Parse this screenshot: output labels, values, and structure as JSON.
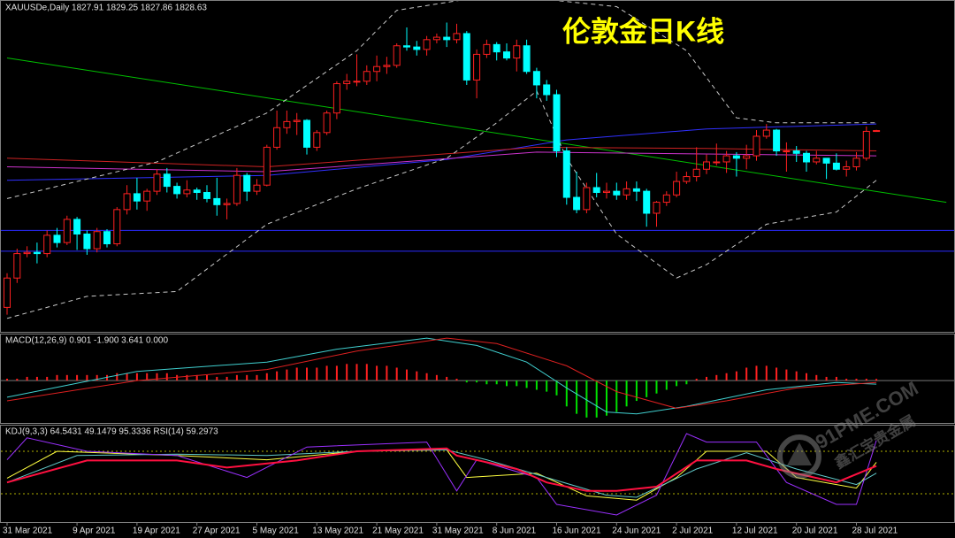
{
  "chart_data": [
    {
      "type": "candlestick",
      "title": "伦敦金日K线",
      "header": "XAUUSDe,Daily  1827.91 1829.25 1827.86 1828.63",
      "categories": [
        "31 Mar 2021",
        null,
        null,
        null,
        null,
        null,
        null,
        "9 Apr 2021",
        null,
        null,
        null,
        null,
        null,
        "19 Apr 2021",
        null,
        null,
        null,
        null,
        null,
        "27 Apr 2021",
        null,
        null,
        null,
        null,
        null,
        "5 May 2021",
        null,
        null,
        null,
        null,
        null,
        "13 May 2021",
        null,
        null,
        null,
        null,
        null,
        "21 May 2021",
        null,
        null,
        null,
        null,
        null,
        "31 May 2021",
        null,
        null,
        null,
        null,
        null,
        "8 Jun 2021",
        null,
        null,
        null,
        null,
        null,
        "16 Jun 2021",
        null,
        null,
        null,
        null,
        null,
        "24 Jun 2021",
        null,
        null,
        null,
        null,
        null,
        "2 Jul 2021",
        null,
        null,
        null,
        null,
        null,
        "12 Jul 2021",
        null,
        null,
        null,
        null,
        null,
        "20 Jul 2021",
        null,
        null,
        null,
        null,
        null,
        "28 Jul 2021",
        null,
        null
      ],
      "open": [
        1684,
        1708,
        1728,
        1729,
        1728,
        1743,
        1737,
        1756,
        1744,
        1732,
        1746,
        1736,
        1764,
        1777,
        1771,
        1779,
        1793,
        1783,
        1777,
        1780,
        1778,
        1773,
        1768,
        1769,
        1792,
        1779,
        1784,
        1815,
        1831,
        1836,
        1837,
        1815,
        1827,
        1843,
        1867,
        1869,
        1869,
        1877,
        1881,
        1882,
        1898,
        1897,
        1895,
        1903,
        1905,
        1903,
        1908,
        1870,
        1891,
        1899,
        1893,
        1888,
        1898,
        1877,
        1866,
        1858,
        1812,
        1774,
        1764,
        1782,
        1778,
        1779,
        1776,
        1781,
        1779,
        1761,
        1770,
        1776,
        1787,
        1791,
        1797,
        1803,
        1803,
        1808,
        1806,
        1808,
        1824,
        1829,
        1812,
        1812,
        1810,
        1803,
        1806,
        1802,
        1797,
        1799,
        1806,
        1827.91
      ],
      "high": [
        1712,
        1732,
        1734,
        1737,
        1747,
        1749,
        1759,
        1758,
        1747,
        1749,
        1748,
        1766,
        1784,
        1790,
        1781,
        1797,
        1798,
        1786,
        1788,
        1782,
        1784,
        1790,
        1773,
        1798,
        1794,
        1789,
        1817,
        1845,
        1845,
        1843,
        1838,
        1829,
        1845,
        1869,
        1875,
        1891,
        1882,
        1890,
        1889,
        1900,
        1913,
        1902,
        1906,
        1908,
        1917,
        1916,
        1910,
        1895,
        1903,
        1901,
        1900,
        1903,
        1903,
        1880,
        1870,
        1862,
        1815,
        1795,
        1786,
        1794,
        1786,
        1786,
        1787,
        1787,
        1781,
        1771,
        1779,
        1795,
        1795,
        1815,
        1809,
        1818,
        1812,
        1811,
        1817,
        1829,
        1834,
        1830,
        1819,
        1816,
        1812,
        1812,
        1806,
        1810,
        1804,
        1811,
        1832,
        1829.25
      ],
      "low": [
        1678,
        1704,
        1725,
        1720,
        1725,
        1733,
        1735,
        1731,
        1727,
        1729,
        1733,
        1734,
        1760,
        1764,
        1763,
        1776,
        1778,
        1773,
        1774,
        1772,
        1770,
        1759,
        1756,
        1767,
        1771,
        1776,
        1783,
        1813,
        1826,
        1825,
        1809,
        1812,
        1825,
        1838,
        1862,
        1865,
        1866,
        1869,
        1875,
        1880,
        1894,
        1890,
        1890,
        1900,
        1897,
        1900,
        1866,
        1855,
        1888,
        1886,
        1886,
        1877,
        1875,
        1855,
        1853,
        1807,
        1768,
        1761,
        1761,
        1774,
        1773,
        1772,
        1772,
        1771,
        1750,
        1750,
        1767,
        1774,
        1785,
        1787,
        1793,
        1800,
        1794,
        1791,
        1797,
        1804,
        1822,
        1808,
        1795,
        1803,
        1795,
        1801,
        1789,
        1796,
        1791,
        1796,
        1804,
        1827.86
      ],
      "close": [
        1708,
        1728,
        1729,
        1728,
        1743,
        1737,
        1756,
        1744,
        1732,
        1746,
        1736,
        1764,
        1777,
        1771,
        1779,
        1793,
        1783,
        1777,
        1780,
        1778,
        1773,
        1768,
        1769,
        1792,
        1779,
        1784,
        1815,
        1831,
        1836,
        1837,
        1815,
        1827,
        1843,
        1867,
        1869,
        1869,
        1877,
        1881,
        1882,
        1898,
        1897,
        1895,
        1903,
        1905,
        1903,
        1908,
        1870,
        1891,
        1899,
        1893,
        1888,
        1898,
        1877,
        1866,
        1858,
        1812,
        1774,
        1764,
        1782,
        1778,
        1779,
        1776,
        1781,
        1779,
        1761,
        1770,
        1776,
        1787,
        1791,
        1797,
        1803,
        1803,
        1808,
        1806,
        1808,
        1824,
        1829,
        1812,
        1812,
        1810,
        1803,
        1806,
        1802,
        1797,
        1799,
        1806,
        1828,
        1828.63
      ],
      "up_color": "#ff2020",
      "down_color": "#00ffff",
      "ylim": [
        1664,
        1934
      ],
      "hlines": [
        {
          "value": 1747,
          "color": "#2a2aff"
        },
        {
          "value": 1730,
          "color": "#2a2aff"
        }
      ],
      "overlays": [
        {
          "color": "#00c000",
          "style": "solid",
          "x": [
            0,
            94
          ],
          "values": [
            1888,
            1770
          ]
        },
        {
          "color": "#3030ff",
          "style": "solid",
          "x": [
            0,
            26,
            44,
            56,
            70,
            87
          ],
          "values": [
            1788,
            1792,
            1805,
            1821,
            1830,
            1834
          ]
        },
        {
          "color": "#cc2222",
          "style": "solid",
          "x": [
            0,
            26,
            53,
            70,
            87
          ],
          "values": [
            1806,
            1799,
            1815,
            1814,
            1812
          ]
        },
        {
          "color": "#cc33cc",
          "style": "solid",
          "x": [
            0,
            26,
            53,
            87
          ],
          "values": [
            1799,
            1795,
            1811,
            1808
          ]
        },
        {
          "color": "#c8c8c8",
          "style": "dashed",
          "x": [
            0,
            15,
            26,
            35,
            39,
            49,
            61,
            68,
            73,
            77,
            87
          ],
          "values": [
            1773,
            1803,
            1843,
            1894,
            1927,
            1940,
            1930,
            1894,
            1839,
            1835,
            1835
          ]
        },
        {
          "color": "#c8c8c8",
          "style": "dashed",
          "x": [
            0,
            8,
            17,
            26,
            35,
            44,
            49,
            53,
            56,
            61,
            67,
            70,
            76,
            83,
            87
          ],
          "values": [
            1675,
            1693,
            1697,
            1752,
            1781,
            1806,
            1835,
            1861,
            1806,
            1744,
            1708,
            1719,
            1752,
            1762,
            1788
          ]
        }
      ]
    },
    {
      "type": "macd",
      "header": "MACD(12,26,9) 0.901 -1.900 3.641 0.000",
      "values": [
        1,
        1,
        2,
        2,
        2,
        3,
        3,
        3,
        3,
        3,
        3,
        4,
        4,
        4,
        4,
        4,
        4,
        3,
        3,
        3,
        3,
        2,
        2,
        3,
        3,
        3,
        4,
        5,
        6,
        7,
        7,
        7,
        8,
        8,
        9,
        9,
        9,
        8,
        8,
        7,
        6,
        5,
        4,
        3,
        2,
        1,
        -1,
        -1,
        -2,
        -2,
        -3,
        -3,
        -4,
        -5,
        -6,
        -8,
        -14,
        -18,
        -20,
        -20,
        -19,
        -17,
        -14,
        -11,
        -9,
        -7,
        -5,
        -3,
        -2,
        1,
        2,
        3,
        4,
        5,
        7,
        8,
        8,
        7,
        6,
        5,
        4,
        3,
        2,
        2,
        1,
        1,
        1,
        0.901
      ],
      "pos_color": "#ff2020",
      "neg_color": "#00e000",
      "ylim": [
        -22,
        24
      ],
      "lines": [
        {
          "color": "#40d0d0",
          "x": [
            0,
            13,
            26,
            33,
            42,
            47,
            52,
            56,
            60,
            63,
            68,
            76,
            83,
            87
          ],
          "values": [
            -9,
            5,
            10,
            17,
            23,
            19,
            10,
            -4,
            -17,
            -18,
            -14,
            -5,
            -1,
            -1.9
          ]
        },
        {
          "color": "#dd2020",
          "x": [
            0,
            13,
            26,
            35,
            44,
            49,
            56,
            61,
            67,
            72,
            79,
            87
          ],
          "values": [
            -11,
            0,
            6,
            16,
            23,
            20,
            8,
            -6,
            -15,
            -11,
            -4,
            -1
          ]
        }
      ]
    },
    {
      "type": "oscillator",
      "header": "KDJ(9,3,3) 64.5431 49.1479 95.3336  RSI(14) 59.2973",
      "ylim": [
        -20,
        116
      ],
      "levels": [
        80,
        20
      ],
      "level_color": "#b0b000",
      "lines": [
        {
          "color": "#ffff40",
          "width": 1,
          "x": [
            0,
            5,
            17,
            26,
            35,
            44,
            46,
            53,
            58,
            63,
            67,
            70,
            76,
            79,
            85,
            87
          ],
          "values": [
            42,
            80,
            74,
            68,
            80,
            82,
            43,
            49,
            17,
            11,
            43,
            80,
            80,
            43,
            28,
            64.5431
          ]
        },
        {
          "color": "#60c8c8",
          "width": 1,
          "x": [
            0,
            7,
            17,
            26,
            35,
            44,
            48,
            54,
            60,
            63,
            69,
            74,
            79,
            85,
            87
          ],
          "values": [
            36,
            74,
            76,
            74,
            80,
            82,
            68,
            43,
            18,
            15,
            55,
            78,
            55,
            33,
            49.1479
          ]
        },
        {
          "color": "#9b30ff",
          "width": 1,
          "x": [
            0,
            2,
            8,
            17,
            24,
            30,
            42,
            45,
            47,
            53,
            55,
            61,
            65,
            68,
            70,
            75,
            78,
            83,
            85,
            87
          ],
          "values": [
            68,
            99,
            80,
            74,
            43,
            86,
            93,
            24,
            68,
            43,
            5,
            -10,
            18,
            105,
            93,
            93,
            36,
            5,
            5,
            95.3336
          ]
        },
        {
          "color": "#ff1040",
          "width": 2,
          "x": [
            0,
            8,
            17,
            22,
            29,
            35,
            44,
            45,
            51,
            54,
            58,
            61,
            65,
            69,
            74,
            77,
            83,
            87
          ],
          "values": [
            36,
            67,
            67,
            57,
            67,
            80,
            84,
            74,
            55,
            36,
            24,
            24,
            30,
            67,
            67,
            55,
            36,
            59.2973
          ]
        }
      ]
    }
  ],
  "watermark": {
    "site": "91PME.COM",
    "name": "鑫汇宝贵金属"
  }
}
